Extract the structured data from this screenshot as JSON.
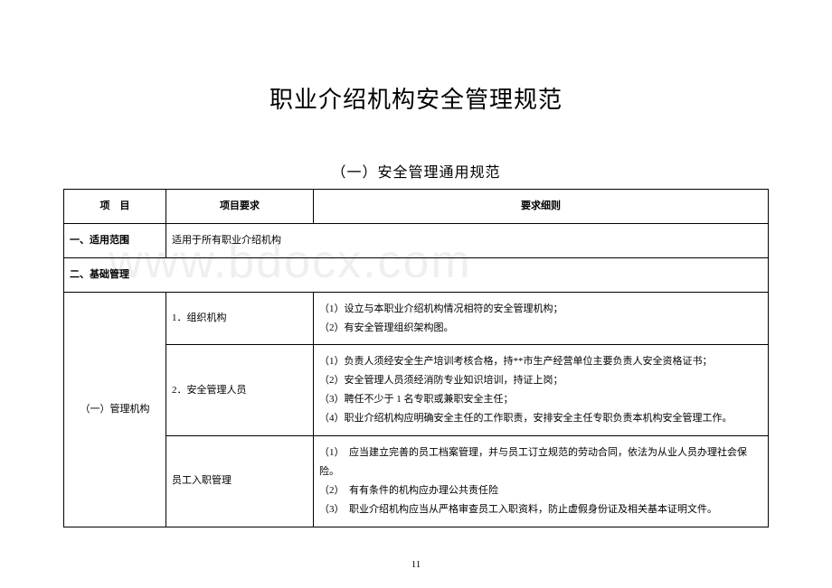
{
  "title": "职业介绍机构安全管理规范",
  "subtitle": "（一）安全管理通用规范",
  "watermark": "www.bdocx.com",
  "table": {
    "header": {
      "c1": "项　目",
      "c2": "项目要求",
      "c3": "要求细则"
    },
    "row_scope": {
      "label": "一、适用范围",
      "req": "适用于所有职业介绍机构",
      "detail": ""
    },
    "row_base_header": {
      "label": "二、基础管理"
    },
    "mgmt_group_label": "（一）管理机构",
    "mgmt_rows": [
      {
        "req": "1．组织机构",
        "detail": "（1）设立与本职业介绍机构情况相符的安全管理机构；\n（2）有安全管理组织架构图。"
      },
      {
        "req": "2．安全管理人员",
        "detail": "（1）负责人须经安全生产培训考核合格，持**市生产经营单位主要负责人安全资格证书；\n（2）安全管理人员须经消防专业知识培训，持证上岗；\n（3）聘任不少于 1 名专职或兼职安全主任；\n（4）职业介绍机构应明确安全主任的工作职责，安排安全主任专职负责本机构安全管理工作。"
      },
      {
        "req": "员工入职管理",
        "detail": "（1）　应当建立完善的员工档案管理，并与员工订立规范的劳动合同，依法为从业人员办理社会保险。\n（2）　有有条件的机构应办理公共责任险\n（3）　职业介绍机构应当从严格审查员工入职资料，防止虚假身份证及相关基本证明文件。"
      }
    ]
  },
  "page_number": "11"
}
